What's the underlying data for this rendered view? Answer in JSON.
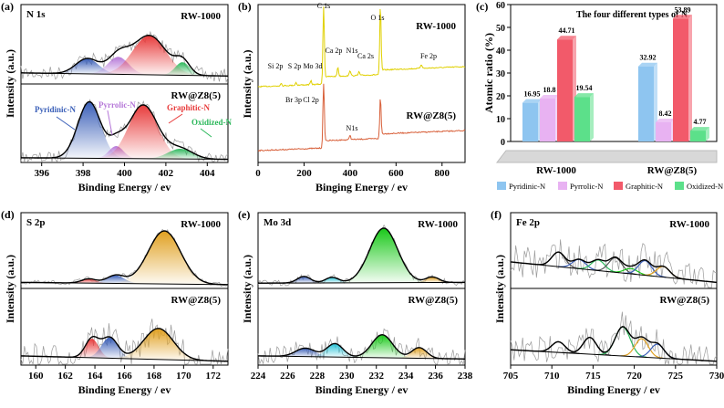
{
  "colors": {
    "blue": "#3a5fb8",
    "purple": "#b678d8",
    "red": "#e83c3c",
    "green": "#2eb85c",
    "orange": "#e0a020",
    "cyan": "#29c4d8",
    "brightgreen": "#18c818",
    "rw_line": "#e0d000",
    "rwz_line": "#d8603a",
    "curve": "#000000",
    "noise": "#9a9a9a",
    "bar_blue": "#8ec5f0",
    "bar_purple": "#e8b2f2",
    "bar_red": "#f25a6a",
    "bar_green": "#5ce08a"
  },
  "chart_data": [
    {
      "id": "a",
      "type": "line",
      "panel_label": "(a)",
      "title": "N 1s",
      "xlabel": "Binding Energy / ev",
      "ylabel": "Intensity (a.u.)",
      "xlim": [
        395,
        405
      ],
      "xticks": [
        396,
        398,
        400,
        402,
        404
      ],
      "reversed": false,
      "spectra": [
        {
          "name": "RW-1000",
          "label": "RW-1000",
          "peaks": [
            {
              "center": 398.2,
              "height": 0.35,
              "width": 0.55,
              "color": "blue"
            },
            {
              "center": 399.7,
              "height": 0.4,
              "width": 0.5,
              "color": "purple"
            },
            {
              "center": 401.2,
              "height": 0.9,
              "width": 0.8,
              "color": "red"
            },
            {
              "center": 402.8,
              "height": 0.3,
              "width": 0.35,
              "color": "green"
            }
          ]
        },
        {
          "name": "RW@Z8(5)",
          "label": "RW@Z8(5)",
          "peaks": [
            {
              "center": 398.3,
              "height": 1.0,
              "width": 0.55,
              "color": "blue"
            },
            {
              "center": 399.6,
              "height": 0.22,
              "width": 0.35,
              "color": "purple"
            },
            {
              "center": 400.9,
              "height": 0.95,
              "width": 0.7,
              "color": "red"
            },
            {
              "center": 402.7,
              "height": 0.18,
              "width": 0.6,
              "color": "green"
            }
          ]
        }
      ],
      "annotations": [
        "Pyridinic-N",
        "Pyrrolic-N",
        "Graphitic-N",
        "Oxidized-N"
      ]
    },
    {
      "id": "b",
      "type": "line",
      "panel_label": "(b)",
      "xlabel": "Binging Energy / ev",
      "ylabel": "Intensity (a.u.)",
      "xlim": [
        0,
        900
      ],
      "xticks": [
        0,
        200,
        400,
        600,
        800
      ],
      "series": [
        "RW-1000",
        "RW@Z8(5)"
      ],
      "annotations": [
        "C 1s",
        "O 1s",
        "Ca 2p",
        "N1s",
        "Ca 2s",
        "Si 2p",
        "S 2p",
        "Mo 3d",
        "Br 3p",
        "Cl 2p",
        "Fe 2p",
        "N1s"
      ]
    },
    {
      "id": "c",
      "type": "bar",
      "panel_label": "(c)",
      "title": "The four different types of N",
      "ylabel": "Atomic ratio (%)",
      "ylim": [
        0,
        60
      ],
      "yticks": [
        0,
        10,
        20,
        30,
        40,
        50,
        60
      ],
      "categories": [
        "RW-1000",
        "RW@Z8(5)"
      ],
      "series": [
        {
          "name": "Pyridinic-N",
          "values": [
            16.95,
            32.92
          ]
        },
        {
          "name": "Pyrrolic-N",
          "values": [
            18.8,
            8.42
          ]
        },
        {
          "name": "Graphitic-N",
          "values": [
            44.71,
            53.89
          ]
        },
        {
          "name": "Oxidized-N",
          "values": [
            19.54,
            4.77
          ]
        }
      ],
      "value_labels": [
        [
          "16.95",
          "18.8",
          "44.71",
          "19.54"
        ],
        [
          "32.92",
          "8.42",
          "53.89",
          "4.77"
        ]
      ],
      "legend": "bottom"
    },
    {
      "id": "d",
      "type": "line",
      "panel_label": "(d)",
      "title": "S 2p",
      "xlabel": "Binding Energy / ev",
      "ylabel": "Intensity (a.u.)",
      "xlim": [
        159,
        173
      ],
      "xticks": [
        160,
        162,
        164,
        166,
        168,
        170,
        172
      ],
      "reversed": false,
      "spectra": [
        {
          "name": "RW-1000",
          "label": "RW-1000",
          "peaks": [
            {
              "center": 163.6,
              "height": 0.08,
              "width": 0.5,
              "color": "red"
            },
            {
              "center": 165.4,
              "height": 0.15,
              "width": 0.6,
              "color": "blue"
            },
            {
              "center": 168.7,
              "height": 1.0,
              "width": 1.1,
              "color": "orange"
            }
          ]
        },
        {
          "name": "RW@Z8(5)",
          "label": "RW@Z8(5)",
          "peaks": [
            {
              "center": 163.8,
              "height": 0.55,
              "width": 0.45,
              "color": "red"
            },
            {
              "center": 165.0,
              "height": 0.6,
              "width": 0.55,
              "color": "blue"
            },
            {
              "center": 168.3,
              "height": 0.9,
              "width": 1.0,
              "color": "orange"
            }
          ]
        }
      ]
    },
    {
      "id": "e",
      "type": "line",
      "panel_label": "(e)",
      "title": "Mo 3d",
      "xlabel": "Binding Energy / ev",
      "ylabel": "Intensity (a.u.)",
      "xlim": [
        224,
        238
      ],
      "xticks": [
        224,
        226,
        228,
        230,
        232,
        234,
        236,
        238
      ],
      "reversed": false,
      "spectra": [
        {
          "name": "RW-1000",
          "label": "RW-1000",
          "peaks": [
            {
              "center": 227.1,
              "height": 0.12,
              "width": 0.45,
              "color": "blue"
            },
            {
              "center": 229.0,
              "height": 0.1,
              "width": 0.45,
              "color": "cyan"
            },
            {
              "center": 232.5,
              "height": 1.0,
              "width": 0.95,
              "color": "brightgreen"
            },
            {
              "center": 235.8,
              "height": 0.1,
              "width": 0.45,
              "color": "orange"
            }
          ]
        },
        {
          "name": "RW@Z8(5)",
          "label": "RW@Z8(5)",
          "peaks": [
            {
              "center": 227.2,
              "height": 0.22,
              "width": 0.65,
              "color": "blue"
            },
            {
              "center": 229.2,
              "height": 0.35,
              "width": 0.55,
              "color": "cyan"
            },
            {
              "center": 232.4,
              "height": 0.6,
              "width": 0.7,
              "color": "brightgreen"
            },
            {
              "center": 234.9,
              "height": 0.28,
              "width": 0.5,
              "color": "orange"
            }
          ]
        }
      ]
    },
    {
      "id": "f",
      "type": "line",
      "panel_label": "(f)",
      "title": "Fe 2p",
      "xlabel": "Binding Energy / ev",
      "ylabel": "Intensity (a.u.)",
      "xlim": [
        705,
        730
      ],
      "xticks": [
        705,
        710,
        715,
        720,
        725,
        730
      ],
      "reversed": false,
      "spectra": [
        {
          "name": "RW-1000",
          "label": "RW-1000",
          "peaks": [
            {
              "center": 710.8,
              "height": 0.55,
              "width": 0.8,
              "color": "gray"
            },
            {
              "center": 713.3,
              "height": 0.35,
              "width": 0.8,
              "color": "blue"
            },
            {
              "center": 715.6,
              "height": 0.4,
              "width": 0.8,
              "color": "green"
            },
            {
              "center": 717.7,
              "height": 0.55,
              "width": 0.8,
              "color": "gray"
            },
            {
              "center": 719.6,
              "height": 0.2,
              "width": 0.8,
              "color": "brightgreen"
            },
            {
              "center": 721.3,
              "height": 0.55,
              "width": 0.8,
              "color": "blue"
            },
            {
              "center": 723.5,
              "height": 0.4,
              "width": 0.8,
              "color": "orange"
            }
          ]
        },
        {
          "name": "RW@Z8(5)",
          "label": "RW@Z8(5)",
          "peaks": [
            {
              "center": 710.8,
              "height": 0.35,
              "width": 0.8,
              "color": "gray"
            },
            {
              "center": 714.6,
              "height": 0.55,
              "width": 0.8,
              "color": "gray"
            },
            {
              "center": 718.6,
              "height": 0.95,
              "width": 0.9,
              "color": "green"
            },
            {
              "center": 720.9,
              "height": 0.6,
              "width": 0.8,
              "color": "orange"
            },
            {
              "center": 722.8,
              "height": 0.45,
              "width": 0.8,
              "color": "blue"
            }
          ]
        }
      ]
    }
  ]
}
